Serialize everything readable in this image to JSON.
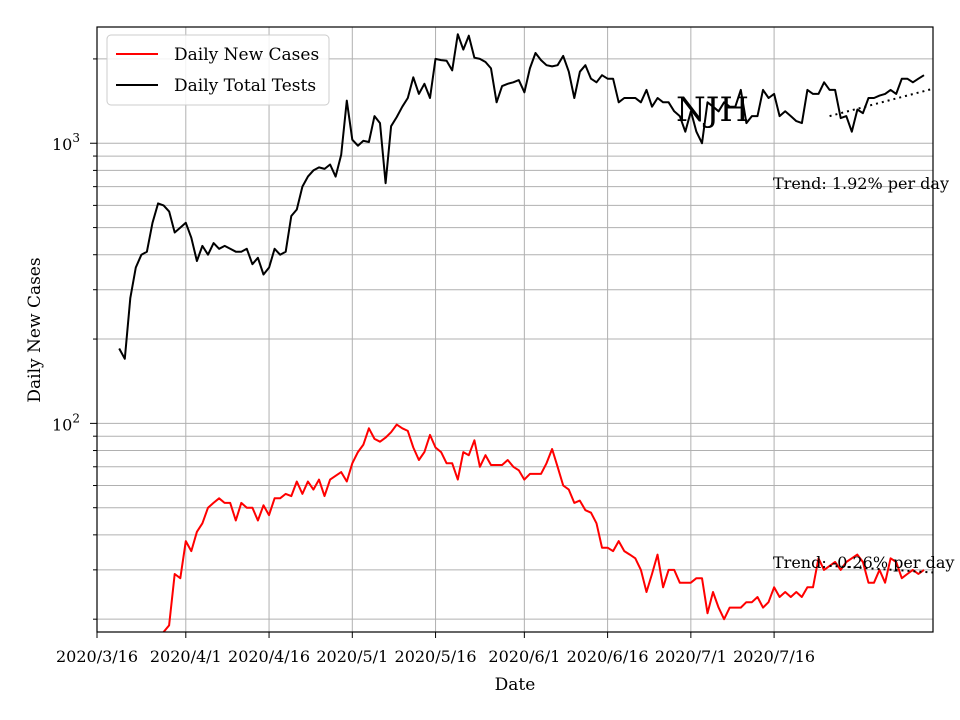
{
  "chart_data": {
    "type": "line",
    "title": "",
    "xlabel": "Date",
    "ylabel": "Daily New Cases",
    "yscale": "log",
    "ylim": [
      18,
      2600
    ],
    "xlim": [
      "2020-03-16",
      "2020-08-18"
    ],
    "grid": true,
    "legend_position": "top-left",
    "x_tick_labels": [
      "2020/3/16",
      "2020/4/1",
      "2020/4/16",
      "2020/5/1",
      "2020/5/16",
      "2020/6/1",
      "2020/6/16",
      "2020/7/1",
      "2020/7/16"
    ],
    "x_tick_dates": [
      "2020-03-16",
      "2020-04-01",
      "2020-04-16",
      "2020-05-01",
      "2020-05-16",
      "2020-06-01",
      "2020-06-16",
      "2020-07-01",
      "2020-07-16"
    ],
    "y_tick_labels": [
      {
        "value": 100,
        "base": "10",
        "exp": "2"
      },
      {
        "value": 1000,
        "base": "10",
        "exp": "3"
      }
    ],
    "watermark": "NJH",
    "series": [
      {
        "name": "Daily New Cases",
        "color": "#ff0000",
        "start_date": "2020-03-25",
        "values": [
          15,
          16,
          17,
          18,
          19,
          29,
          28,
          38,
          35,
          41,
          44,
          50,
          52,
          54,
          52,
          52,
          45,
          52,
          50,
          50,
          45,
          51,
          47,
          54,
          54,
          56,
          55,
          62,
          56,
          62,
          58,
          63,
          55,
          63,
          65,
          67,
          62,
          72,
          79,
          84,
          96,
          88,
          86,
          89,
          93,
          99,
          96,
          94,
          82,
          74,
          79,
          91,
          82,
          79,
          72,
          72,
          63,
          79,
          77,
          87,
          70,
          77,
          71,
          71,
          71,
          74,
          70,
          68,
          63,
          66,
          66,
          66,
          72,
          81,
          70,
          60,
          58,
          52,
          53,
          49,
          48,
          44,
          36,
          36,
          35,
          38,
          35,
          34,
          33,
          30,
          25,
          29,
          34,
          26,
          30,
          30,
          27,
          27,
          27,
          28,
          28,
          21,
          25,
          22,
          20,
          22,
          22,
          22,
          23,
          23,
          24,
          22,
          23,
          26,
          24,
          25,
          24,
          25,
          24,
          26,
          26,
          33,
          30,
          31,
          32,
          30,
          32,
          33,
          34,
          32,
          27,
          27,
          30,
          27,
          33,
          32,
          28,
          29,
          30,
          29,
          30
        ]
      },
      {
        "name": "Daily Total Tests",
        "color": "#000000",
        "start_date": "2020-03-20",
        "values": [
          185,
          170,
          280,
          360,
          400,
          410,
          520,
          610,
          600,
          570,
          480,
          500,
          520,
          460,
          380,
          430,
          400,
          440,
          420,
          430,
          420,
          410,
          410,
          420,
          370,
          390,
          340,
          360,
          420,
          400,
          410,
          550,
          580,
          700,
          760,
          800,
          820,
          810,
          840,
          760,
          910,
          1420,
          1030,
          980,
          1020,
          1010,
          1250,
          1180,
          720,
          1150,
          1240,
          1350,
          1450,
          1720,
          1500,
          1630,
          1450,
          2000,
          1980,
          1970,
          1820,
          2450,
          2160,
          2420,
          2020,
          2000,
          1950,
          1850,
          1400,
          1600,
          1630,
          1650,
          1680,
          1520,
          1850,
          2100,
          1980,
          1900,
          1880,
          1900,
          2050,
          1800,
          1450,
          1800,
          1900,
          1700,
          1650,
          1750,
          1700,
          1700,
          1400,
          1450,
          1450,
          1450,
          1400,
          1550,
          1350,
          1450,
          1400,
          1400,
          1300,
          1250,
          1100,
          1300,
          1100,
          1000,
          1400,
          1350,
          1300,
          1400,
          1350,
          1350,
          1550,
          1180,
          1250,
          1250,
          1550,
          1450,
          1500,
          1250,
          1300,
          1250,
          1200,
          1180,
          1550,
          1500,
          1500,
          1650,
          1550,
          1550,
          1230,
          1250,
          1100,
          1320,
          1280,
          1450,
          1450,
          1480,
          1500,
          1550,
          1500,
          1700,
          1700,
          1650,
          1700,
          1750
        ]
      }
    ],
    "trends": [
      {
        "label": "Trend: 1.92% per day",
        "series": "Daily Total Tests",
        "start_date": "2020-07-26",
        "end_date": "2020-08-18",
        "start_value": 1250,
        "end_value": 1650
      },
      {
        "label": "Trend: -0.26% per day",
        "series": "Daily New Cases",
        "start_date": "2020-07-26",
        "end_date": "2020-08-18",
        "start_value": 31,
        "end_value": 29
      }
    ]
  }
}
